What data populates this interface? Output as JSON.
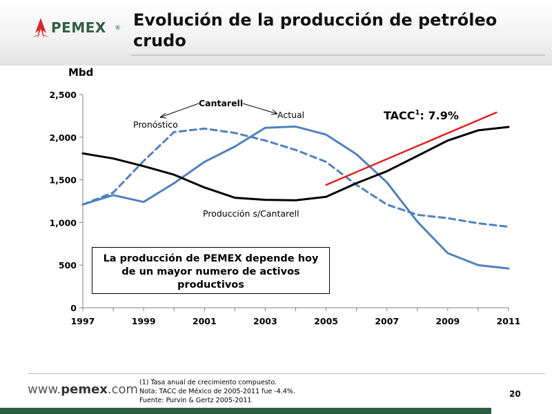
{
  "header": {
    "title": "Evolución de la producción de petróleo crudo",
    "logo_text": "PEMEX",
    "logo_mark": "®",
    "logo_icon": "pemex-eagle-icon"
  },
  "colors": {
    "brand_green": "#2c5d43",
    "series_blue": "#4f81bd",
    "series_black": "#000000",
    "trend_red": "#e02020"
  },
  "chart_data": {
    "type": "line",
    "ylabel": "Mbd",
    "ylim": [
      0,
      2500
    ],
    "xlim": [
      1997,
      2011
    ],
    "y_ticks": [
      "0",
      "500",
      "1,000",
      "1,500",
      "2,000",
      "2,500"
    ],
    "x_ticks": [
      "1997",
      "1999",
      "2001",
      "2003",
      "2005",
      "2007",
      "2009",
      "2011"
    ],
    "grid": false,
    "series": [
      {
        "name": "Actual",
        "style": "solid",
        "color": "#4f81bd",
        "x": [
          1997,
          1998,
          1999,
          2000,
          2001,
          2002,
          2003,
          2004,
          2005,
          2006,
          2007,
          2008,
          2009,
          2010,
          2011
        ],
        "values": [
          1210,
          1320,
          1240,
          1460,
          1710,
          1890,
          2110,
          2125,
          2030,
          1800,
          1470,
          1010,
          640,
          500,
          460
        ]
      },
      {
        "name": "Pronóstico",
        "style": "dashed",
        "color": "#4f81bd",
        "x": [
          1997,
          1998,
          1999,
          2000,
          2001,
          2002,
          2003,
          2004,
          2005,
          2006,
          2007,
          2008,
          2009,
          2010,
          2011
        ],
        "values": [
          1210,
          1350,
          1720,
          2060,
          2100,
          2050,
          1960,
          1850,
          1710,
          1440,
          1210,
          1090,
          1050,
          990,
          950
        ]
      },
      {
        "name": "Producción s/Cantarell",
        "style": "solid",
        "color": "#000000",
        "x": [
          1997,
          1998,
          1999,
          2000,
          2001,
          2002,
          2003,
          2004,
          2005,
          2006,
          2007,
          2008,
          2009,
          2010,
          2011
        ],
        "values": [
          1810,
          1750,
          1660,
          1560,
          1410,
          1290,
          1265,
          1260,
          1300,
          1460,
          1600,
          1780,
          1960,
          2080,
          2120
        ]
      },
      {
        "name": "TACC",
        "style": "solid",
        "color": "#e02020",
        "x": [
          2005,
          2010.6
        ],
        "values": [
          1440,
          2290
        ]
      }
    ],
    "annotations": {
      "cantarell": "Cantarell",
      "actual": "Actual",
      "pronostico": "Pronóstico",
      "sin_cantarell": "Producción s/Cantarell",
      "tacc_prefix": "TACC",
      "tacc_sup": "1",
      "tacc_value": ": 7.9%"
    }
  },
  "callout": {
    "text": "La producción de PEMEX depende hoy de un mayor numero de activos productivos"
  },
  "footer": {
    "website_prefix": "www.",
    "website_domain": "pemex",
    "website_suffix": ".com",
    "note_1": "(1)  Tasa anual de crecimiento compuesto.",
    "note_2": "Nota:  TACC de México de 2005-2011 fue -4.4%.",
    "note_3": "Fuente: Purvin & Gertz 2005-2011",
    "page_number": "20"
  }
}
